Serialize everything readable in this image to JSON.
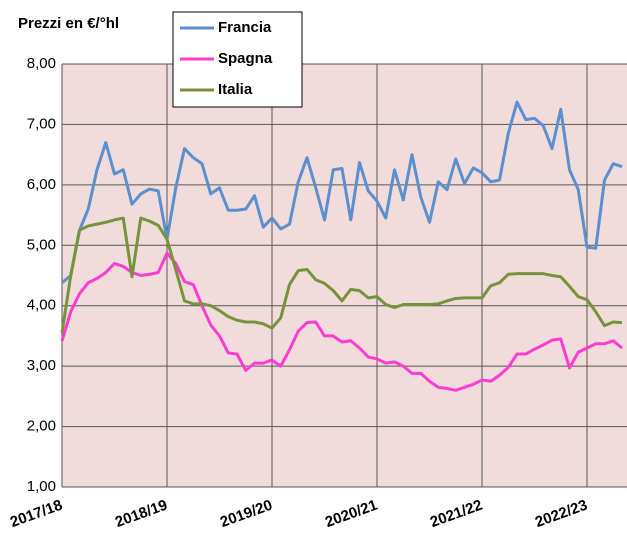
{
  "chart_data": {
    "type": "line",
    "y_label": "Prezzi en €/°hl",
    "categories": [
      "2017/18",
      null,
      null,
      null,
      null,
      null,
      null,
      null,
      null,
      null,
      null,
      null,
      "2018/19",
      null,
      null,
      null,
      null,
      null,
      null,
      null,
      null,
      null,
      null,
      null,
      "2019/20",
      null,
      null,
      null,
      null,
      null,
      null,
      null,
      null,
      null,
      null,
      null,
      "2020/21",
      null,
      null,
      null,
      null,
      null,
      null,
      null,
      null,
      null,
      null,
      null,
      "2021/22",
      null,
      null,
      null,
      null,
      null,
      null,
      null,
      null,
      null,
      null,
      null,
      "2022/23",
      null,
      null,
      null,
      null
    ],
    "series": [
      {
        "name": "Francia",
        "color": "#5b8fd0",
        "values": [
          4.38,
          4.5,
          5.25,
          5.6,
          6.25,
          6.7,
          6.18,
          6.25,
          5.68,
          5.85,
          5.93,
          5.9,
          5.1,
          5.95,
          6.6,
          6.45,
          6.35,
          5.85,
          5.95,
          5.58,
          5.58,
          5.6,
          5.82,
          5.3,
          5.45,
          5.27,
          5.35,
          6.05,
          6.45,
          5.95,
          5.42,
          6.25,
          6.27,
          5.42,
          6.37,
          5.9,
          5.73,
          5.45,
          6.25,
          5.75,
          6.5,
          5.8,
          5.38,
          6.05,
          5.92,
          6.43,
          6.02,
          6.28,
          6.2,
          6.05,
          6.08,
          6.85,
          7.37,
          7.08,
          7.1,
          6.98,
          6.6,
          7.25,
          6.25,
          5.92,
          4.97,
          4.95,
          6.08,
          6.35,
          6.3
        ]
      },
      {
        "name": "Spagna",
        "color": "#ff3bd1",
        "values": [
          3.42,
          3.9,
          4.2,
          4.38,
          4.45,
          4.55,
          4.7,
          4.65,
          4.55,
          4.5,
          4.52,
          4.55,
          4.87,
          4.7,
          4.4,
          4.35,
          4.0,
          3.68,
          3.5,
          3.22,
          3.2,
          2.93,
          3.05,
          3.05,
          3.1,
          3.0,
          3.27,
          3.58,
          3.72,
          3.73,
          3.5,
          3.5,
          3.4,
          3.42,
          3.3,
          3.15,
          3.12,
          3.05,
          3.07,
          3.0,
          2.88,
          2.88,
          2.75,
          2.65,
          2.63,
          2.6,
          2.65,
          2.7,
          2.77,
          2.75,
          2.85,
          2.98,
          3.2,
          3.2,
          3.28,
          3.35,
          3.43,
          3.45,
          2.97,
          3.23,
          3.3,
          3.37,
          3.37,
          3.42,
          3.3
        ]
      },
      {
        "name": "Italia",
        "color": "#76933c",
        "values": [
          3.55,
          4.5,
          5.25,
          5.32,
          5.35,
          5.38,
          5.42,
          5.45,
          4.48,
          5.45,
          5.4,
          5.33,
          5.1,
          4.6,
          4.08,
          4.03,
          4.03,
          4.0,
          3.92,
          3.82,
          3.76,
          3.73,
          3.73,
          3.7,
          3.63,
          3.8,
          4.35,
          4.58,
          4.6,
          4.43,
          4.37,
          4.25,
          4.08,
          4.27,
          4.25,
          4.13,
          4.15,
          4.02,
          3.97,
          4.02,
          4.02,
          4.02,
          4.02,
          4.03,
          4.08,
          4.12,
          4.13,
          4.13,
          4.13,
          4.33,
          4.38,
          4.52,
          4.53,
          4.53,
          4.53,
          4.53,
          4.5,
          4.48,
          4.32,
          4.15,
          4.1,
          3.9,
          3.67,
          3.73,
          3.72
        ]
      }
    ],
    "ylim": [
      1,
      8
    ],
    "yticks": [
      {
        "value": 1,
        "label": "1,00"
      },
      {
        "value": 2,
        "label": "2,00"
      },
      {
        "value": 3,
        "label": "3,00"
      },
      {
        "value": 4,
        "label": "4,00"
      },
      {
        "value": 5,
        "label": "5,00"
      },
      {
        "value": 6,
        "label": "6,00"
      },
      {
        "value": 7,
        "label": "7,00"
      },
      {
        "value": 8,
        "label": "8,00"
      }
    ],
    "grid": true,
    "background": "#f2dcdb",
    "legend": "top"
  }
}
